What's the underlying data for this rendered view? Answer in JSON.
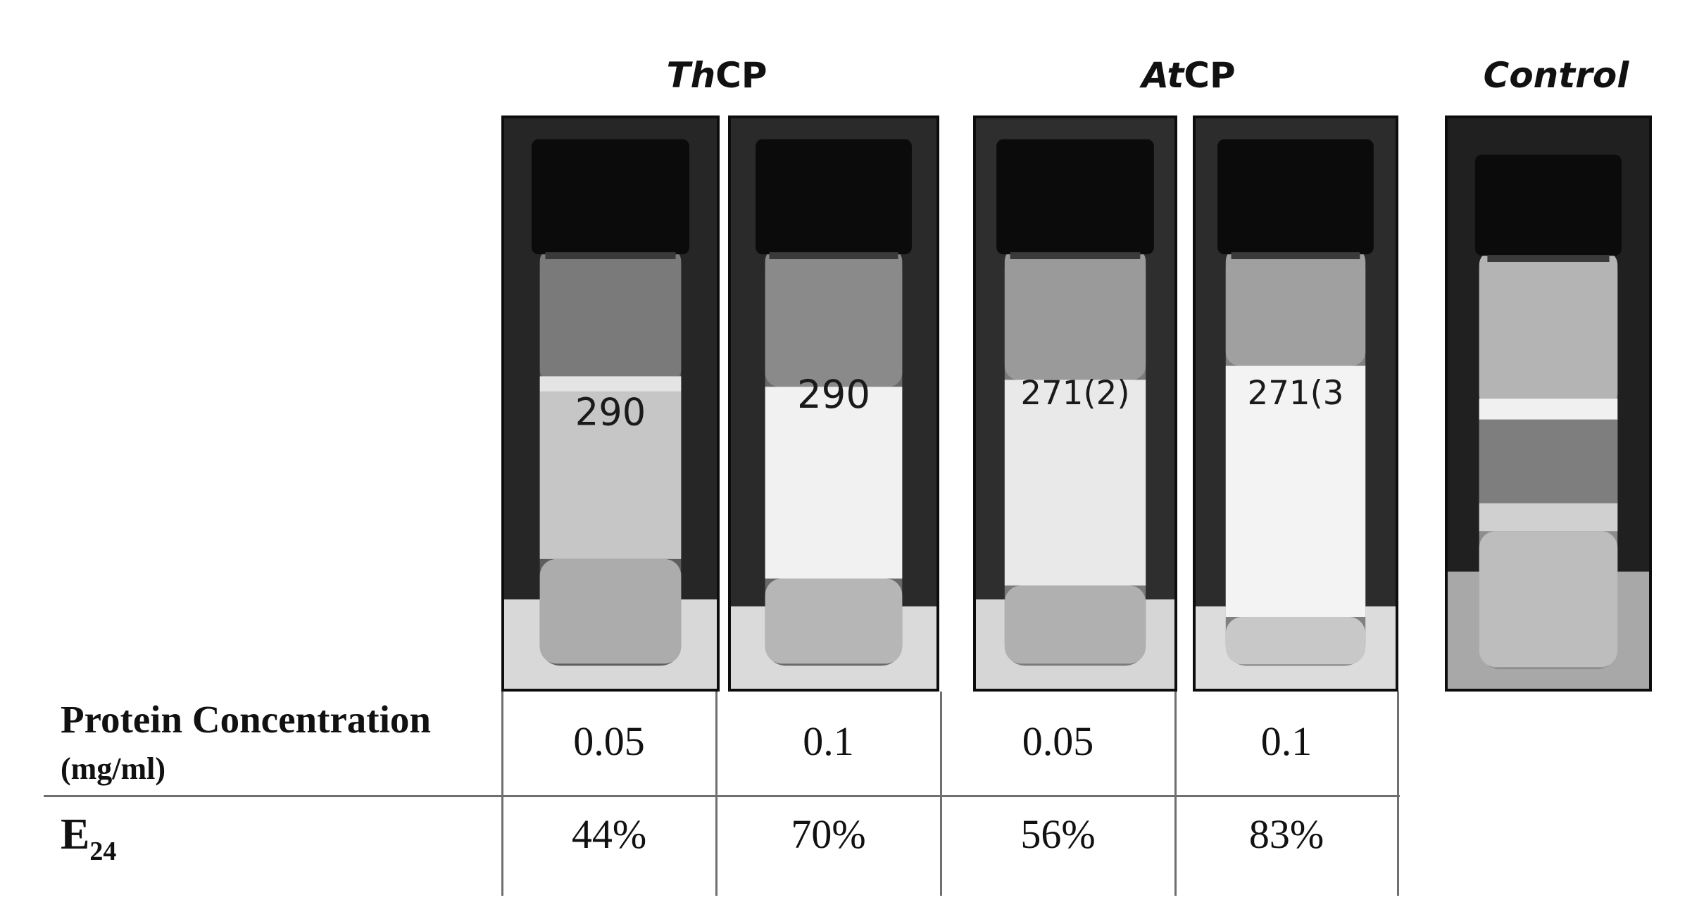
{
  "groups": {
    "thcp": {
      "italic": "Th",
      "normal": "CP"
    },
    "atcp": {
      "italic": "At",
      "normal": "CP"
    },
    "control": "Control"
  },
  "vial_labels": [
    "290",
    "290",
    "271(2)",
    "271(3",
    ""
  ],
  "table": {
    "row1_label": "Protein Concentration",
    "row1_unit": "(mg/ml)",
    "row2_label": "E",
    "row2_sub": "24",
    "concentrations": [
      "0.05",
      "0.1",
      "0.05",
      "0.1"
    ],
    "e24": [
      "44%",
      "70%",
      "56%",
      "83%"
    ]
  }
}
